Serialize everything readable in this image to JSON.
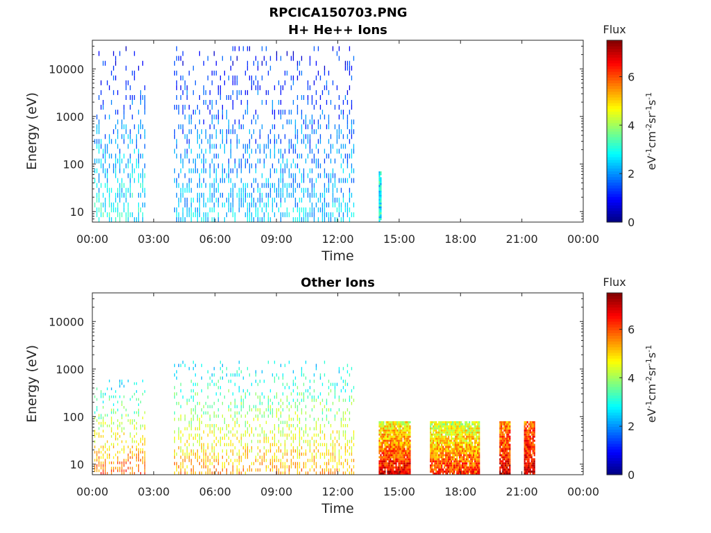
{
  "figure": {
    "title": "RPCICA150703.PNG"
  },
  "chart_data": [
    {
      "type": "heatmap",
      "title": "H+ He++ Ions",
      "xlabel": "Time",
      "ylabel": "Energy (eV)",
      "xticks": [
        "00:00",
        "03:00",
        "06:00",
        "09:00",
        "12:00",
        "15:00",
        "18:00",
        "21:00",
        "00:00"
      ],
      "xlim_hours": [
        0,
        24
      ],
      "yscale": "log",
      "yticks": [
        10,
        100,
        1000,
        10000
      ],
      "ytick_labels": [
        "10",
        "100",
        "1000",
        "10000"
      ],
      "ylim": [
        6,
        40000
      ],
      "colorbar": {
        "title": "Flux",
        "label": "eV-1cm-2sr-1s-1",
        "range": [
          0,
          7.5
        ],
        "ticks": [
          0,
          2,
          4,
          6
        ],
        "colormap": "jet"
      },
      "data_segments": [
        {
          "start_hour": 0.1,
          "end_hour": 2.6,
          "energy_min_eV": 6,
          "energy_max_eV": 30000,
          "flux_low_energy": 3,
          "flux_high_energy": 1
        },
        {
          "start_hour": 4.0,
          "end_hour": 12.8,
          "energy_min_eV": 6,
          "energy_max_eV": 30000,
          "flux_low_energy": 2.5,
          "flux_high_energy": 1
        },
        {
          "start_hour": 14.0,
          "end_hour": 14.1,
          "energy_min_eV": 6,
          "energy_max_eV": 70,
          "flux_low_energy": 2.8,
          "flux_high_energy": 2.8
        }
      ]
    },
    {
      "type": "heatmap",
      "title": "Other Ions",
      "xlabel": "Time",
      "ylabel": "Energy (eV)",
      "xticks": [
        "00:00",
        "03:00",
        "06:00",
        "09:00",
        "12:00",
        "15:00",
        "18:00",
        "21:00",
        "00:00"
      ],
      "xlim_hours": [
        0,
        24
      ],
      "yscale": "log",
      "yticks": [
        10,
        100,
        1000,
        10000
      ],
      "ytick_labels": [
        "10",
        "100",
        "1000",
        "10000"
      ],
      "ylim": [
        6,
        40000
      ],
      "colorbar": {
        "title": "Flux",
        "label": "eV-1cm-2sr-1s-1",
        "range": [
          0,
          7.5
        ],
        "ticks": [
          0,
          2,
          4,
          6
        ],
        "colormap": "jet"
      },
      "data_segments": [
        {
          "start_hour": 0.1,
          "end_hour": 2.6,
          "energy_min_eV": 6,
          "energy_max_eV": 600,
          "flux_low_energy": 6,
          "flux_high_energy": 2.5
        },
        {
          "start_hour": 4.0,
          "end_hour": 12.8,
          "energy_min_eV": 6,
          "energy_max_eV": 1500,
          "flux_low_energy": 5.5,
          "flux_high_energy": 2.5
        },
        {
          "start_hour": 14.0,
          "end_hour": 15.5,
          "energy_min_eV": 6,
          "energy_max_eV": 80,
          "flux_low_energy": 6.8,
          "flux_high_energy": 4.5
        },
        {
          "start_hour": 16.5,
          "end_hour": 18.9,
          "energy_min_eV": 6,
          "energy_max_eV": 80,
          "flux_low_energy": 6.3,
          "flux_high_energy": 4.2
        },
        {
          "start_hour": 19.9,
          "end_hour": 20.4,
          "energy_min_eV": 6,
          "energy_max_eV": 80,
          "flux_low_energy": 6.8,
          "flux_high_energy": 5.5
        },
        {
          "start_hour": 21.1,
          "end_hour": 21.6,
          "energy_min_eV": 6,
          "energy_max_eV": 80,
          "flux_low_energy": 6.8,
          "flux_high_energy": 5.8
        }
      ]
    }
  ]
}
